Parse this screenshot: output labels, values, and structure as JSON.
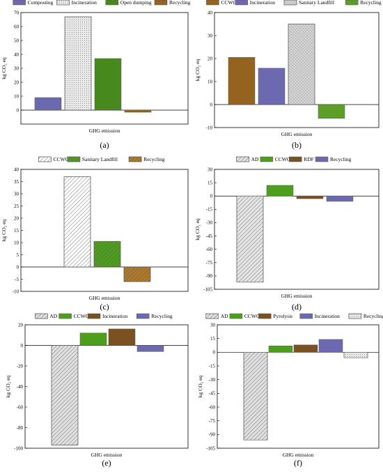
{
  "chart_data": [
    {
      "type": "bar",
      "panel_label": "(a)",
      "xlabel": "GHG emission",
      "ylabel": "kg CO₂ eq",
      "ylim": [
        -10,
        70
      ],
      "yticks": [
        0,
        10,
        20,
        30,
        40,
        50,
        60,
        70
      ],
      "grid": false,
      "legend_position": "top",
      "series": [
        {
          "name": "Composting",
          "value": 9,
          "color": "#6c69b0",
          "pattern": "solid"
        },
        {
          "name": "Incineration",
          "value": 67,
          "color": "#e9e9e9",
          "pattern": "dots"
        },
        {
          "name": "Open dumping",
          "value": 37,
          "color": "#47891d",
          "pattern": "solid"
        },
        {
          "name": "Recycling",
          "value": -1.5,
          "color": "#94631f",
          "pattern": "solid"
        }
      ]
    },
    {
      "type": "bar",
      "panel_label": "(b)",
      "xlabel": "GHG emission",
      "ylabel": "kg CO₂ eq",
      "ylim": [
        -10,
        40
      ],
      "yticks": [
        -10,
        0,
        10,
        20,
        30,
        40
      ],
      "grid": false,
      "legend_position": "top",
      "series": [
        {
          "name": "CCWC",
          "value": 20.5,
          "color": "#94631f",
          "pattern": "solid"
        },
        {
          "name": "Incineration",
          "value": 15.8,
          "color": "#6c69b0",
          "pattern": "solid"
        },
        {
          "name": "Sanitary Landfill",
          "value": 35,
          "color": "#d8d8d8",
          "pattern": "cross"
        },
        {
          "name": "Recycling",
          "value": -6,
          "color": "#5c9e28",
          "pattern": "solid"
        }
      ]
    },
    {
      "type": "bar",
      "panel_label": "(c)",
      "xlabel": "GHG emission",
      "ylabel": "kg CO₂ eq",
      "ylim": [
        -10,
        40
      ],
      "yticks": [
        -10,
        -5,
        0,
        5,
        10,
        15,
        20,
        25,
        30,
        35,
        40
      ],
      "grid": false,
      "legend_position": "top",
      "series": [
        {
          "name": "CCWC",
          "value": 37,
          "color": "#ffffff",
          "pattern": "diag"
        },
        {
          "name": "Sanitary Landfill",
          "value": 10.5,
          "color": "#4e9e1e",
          "pattern": "diag"
        },
        {
          "name": "Recycling",
          "value": -6,
          "color": "#b07a2a",
          "pattern": "diag"
        }
      ]
    },
    {
      "type": "bar",
      "panel_label": "(d)",
      "xlabel": "GHG emission",
      "ylabel": "kg CO₂ eq",
      "ylim": [
        -105,
        30
      ],
      "yticks": [
        -105,
        -90,
        -75,
        -60,
        -45,
        -30,
        -15,
        0,
        15,
        30
      ],
      "grid": false,
      "legend_position": "top",
      "series": [
        {
          "name": "AD",
          "value": -97,
          "color": "#e5e5e5",
          "pattern": "diag"
        },
        {
          "name": "CCWC",
          "value": 12,
          "color": "#4e9e1e",
          "pattern": "solid"
        },
        {
          "name": "RDF",
          "value": -3,
          "color": "#7a5222",
          "pattern": "solid"
        },
        {
          "name": "Recycling",
          "value": -6,
          "color": "#6c69b0",
          "pattern": "solid"
        }
      ]
    },
    {
      "type": "bar",
      "panel_label": "(e)",
      "xlabel": "GHG emission",
      "ylabel": "kg CO₂ eq",
      "ylim": [
        -100,
        20
      ],
      "yticks": [
        -100,
        -80,
        -60,
        -40,
        -20,
        0,
        20
      ],
      "grid": false,
      "legend_position": "top",
      "series": [
        {
          "name": "AD",
          "value": -97,
          "color": "#e0e0e0",
          "pattern": "diag"
        },
        {
          "name": "CCWC",
          "value": 12,
          "color": "#4e9e1e",
          "pattern": "solid"
        },
        {
          "name": "Incineration",
          "value": 16,
          "color": "#7a5222",
          "pattern": "solid"
        },
        {
          "name": "Recycling",
          "value": -6,
          "color": "#6c69b0",
          "pattern": "solid"
        }
      ]
    },
    {
      "type": "bar",
      "panel_label": "(f)",
      "xlabel": "GHG emission",
      "ylabel": "kg CO₂ eq",
      "ylim": [
        -105,
        30
      ],
      "yticks": [
        -105,
        -90,
        -75,
        -60,
        -45,
        -30,
        -15,
        0,
        15,
        30
      ],
      "grid": false,
      "legend_position": "top",
      "series": [
        {
          "name": "AD",
          "value": -96,
          "color": "#e0e0e0",
          "pattern": "diag"
        },
        {
          "name": "CCWC",
          "value": 7,
          "color": "#4e9e1e",
          "pattern": "solid"
        },
        {
          "name": "Pyrolysis",
          "value": 8,
          "color": "#7a5222",
          "pattern": "solid"
        },
        {
          "name": "Incineration",
          "value": 14,
          "color": "#6c69b0",
          "pattern": "solid"
        },
        {
          "name": "Recycling",
          "value": -6,
          "color": "#e9e9e9",
          "pattern": "dots"
        }
      ]
    }
  ]
}
